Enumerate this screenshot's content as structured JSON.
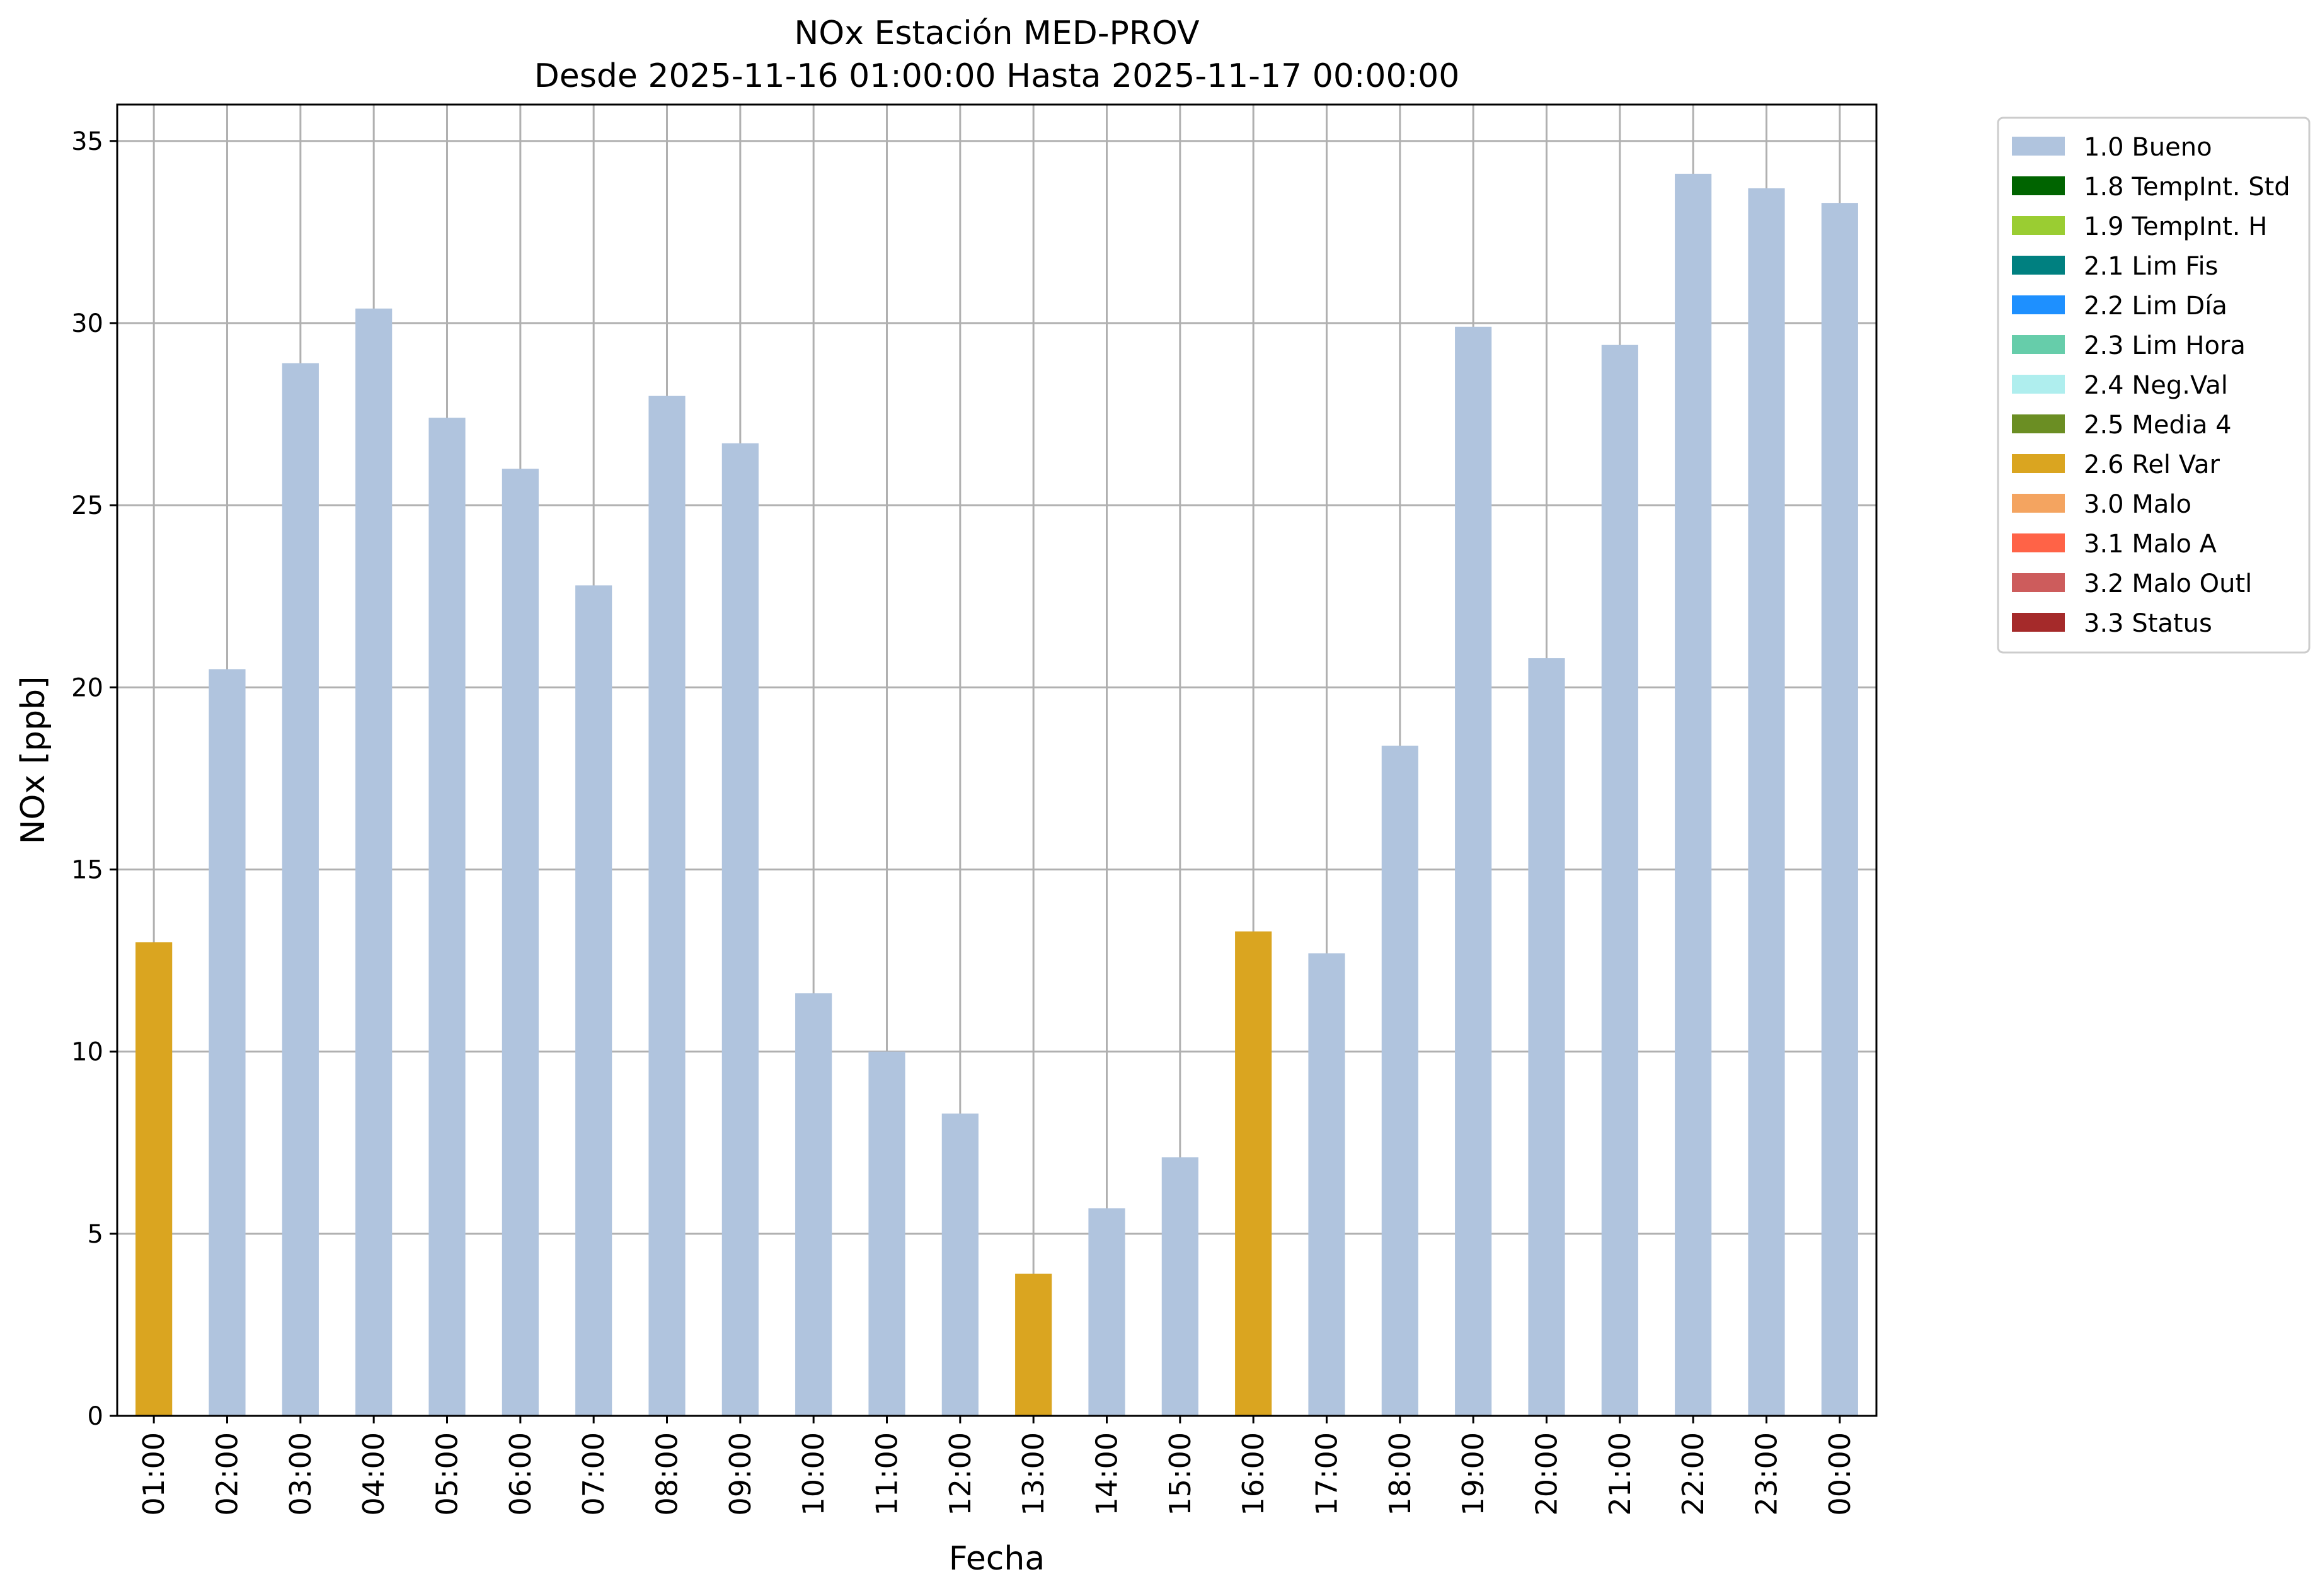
{
  "chart_data": {
    "type": "bar",
    "title": "NOx Estación MED-PROV",
    "subtitle": "Desde 2025-11-16 01:00:00 Hasta 2025-11-17 00:00:00",
    "xlabel": "Fecha",
    "ylabel": "NOx [ppb]",
    "ylim": [
      0,
      36
    ],
    "yticks": [
      0,
      5,
      10,
      15,
      20,
      25,
      30,
      35
    ],
    "grid": true,
    "legend_position": "outside-top-right",
    "categories": [
      "01:00",
      "02:00",
      "03:00",
      "04:00",
      "05:00",
      "06:00",
      "07:00",
      "08:00",
      "09:00",
      "10:00",
      "11:00",
      "12:00",
      "13:00",
      "14:00",
      "15:00",
      "16:00",
      "17:00",
      "18:00",
      "19:00",
      "20:00",
      "21:00",
      "22:00",
      "23:00",
      "00:00"
    ],
    "values": [
      13.0,
      20.5,
      28.9,
      30.4,
      27.4,
      26.0,
      22.8,
      28.0,
      26.7,
      11.6,
      10.0,
      8.3,
      3.9,
      5.7,
      7.1,
      13.3,
      12.7,
      18.4,
      29.9,
      20.8,
      29.4,
      34.1,
      33.7,
      33.3
    ],
    "flags": [
      "2.6 Rel Var",
      "1.0 Bueno",
      "1.0 Bueno",
      "1.0 Bueno",
      "1.0 Bueno",
      "1.0 Bueno",
      "1.0 Bueno",
      "1.0 Bueno",
      "1.0 Bueno",
      "1.0 Bueno",
      "1.0 Bueno",
      "1.0 Bueno",
      "2.6 Rel Var",
      "1.0 Bueno",
      "1.0 Bueno",
      "2.6 Rel Var",
      "1.0 Bueno",
      "1.0 Bueno",
      "1.0 Bueno",
      "1.0 Bueno",
      "1.0 Bueno",
      "1.0 Bueno",
      "1.0 Bueno",
      "1.0 Bueno"
    ],
    "legend": [
      {
        "label": "1.0 Bueno",
        "color": "#b0c4de"
      },
      {
        "label": "1.8 TempInt. Std",
        "color": "#006400"
      },
      {
        "label": "1.9 TempInt. H",
        "color": "#9acd32"
      },
      {
        "label": "2.1 Lim Fis",
        "color": "#008080"
      },
      {
        "label": "2.2 Lim Día",
        "color": "#1e90ff"
      },
      {
        "label": "2.3 Lim Hora",
        "color": "#66cdaa"
      },
      {
        "label": "2.4 Neg.Val",
        "color": "#afeeee"
      },
      {
        "label": "2.5 Media 4",
        "color": "#6b8e23"
      },
      {
        "label": "2.6 Rel Var",
        "color": "#daa520"
      },
      {
        "label": "3.0 Malo",
        "color": "#f4a460"
      },
      {
        "label": "3.1 Malo A",
        "color": "#ff6347"
      },
      {
        "label": "3.2 Malo Outl",
        "color": "#cd5c5c"
      },
      {
        "label": "3.3 Status",
        "color": "#a52a2a"
      }
    ]
  }
}
